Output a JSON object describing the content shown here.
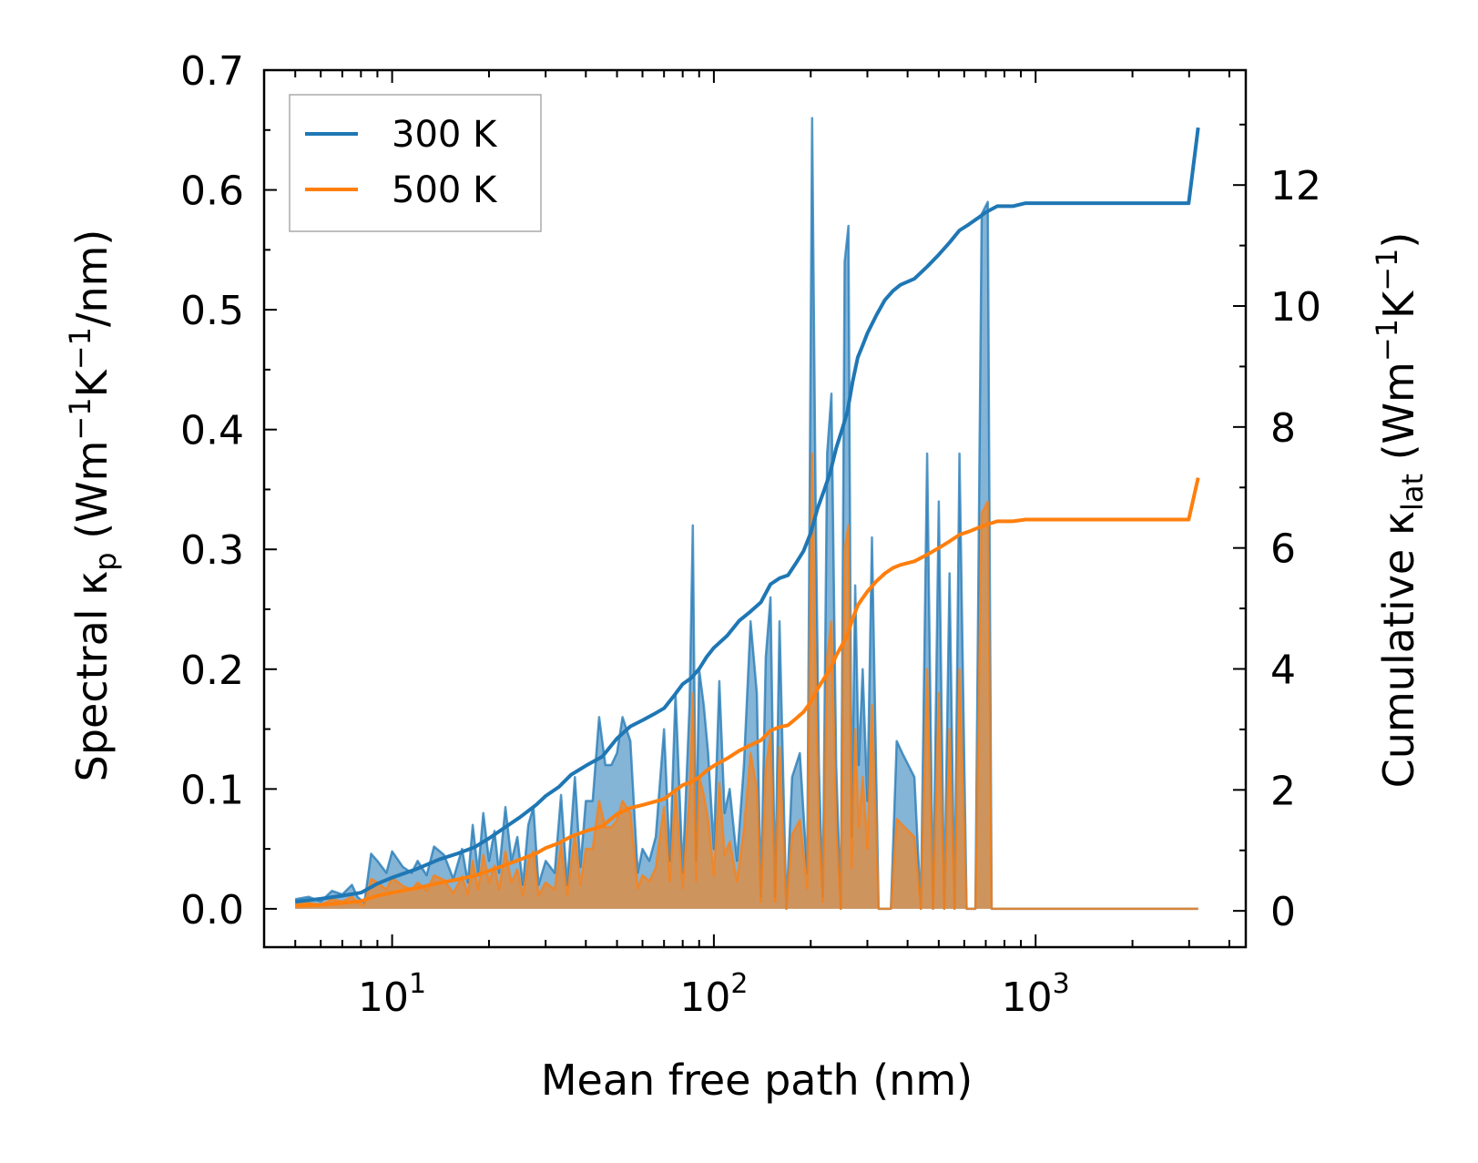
{
  "chart_data": {
    "type": "area",
    "title": "",
    "xlabel": "Mean free path (nm)",
    "ylabel": "Spectral κp (Wm−1K−1/nm)",
    "ylabel_parts": {
      "pre": "Spectral κ",
      "sub": "p",
      "mid1": " (Wm",
      "sup1": "−1",
      "mid2": "K",
      "sup2": "−1",
      "post": "/nm)"
    },
    "y2label": "Cumulative κlat (Wm−1K−1)",
    "y2label_parts": {
      "pre": "Cumulative κ",
      "sub": "lat",
      "mid1": " (Wm",
      "sup1": "−1",
      "mid2": "K",
      "sup2": "−1",
      "post": ")"
    },
    "xscale": "log",
    "xlim": [
      4.0,
      4500
    ],
    "ylim": [
      -0.032,
      0.7
    ],
    "y2lim": [
      -0.6,
      13.9
    ],
    "x_ticks": [
      {
        "value": 10,
        "base": "10",
        "exp": "1"
      },
      {
        "value": 100,
        "base": "10",
        "exp": "2"
      },
      {
        "value": 1000,
        "base": "10",
        "exp": "3"
      }
    ],
    "y_ticks": [
      "0.0",
      "0.1",
      "0.2",
      "0.3",
      "0.4",
      "0.5",
      "0.6",
      "0.7"
    ],
    "y2_ticks": [
      "0",
      "2",
      "4",
      "6",
      "8",
      "10",
      "12"
    ],
    "legend": {
      "position": "top-left",
      "entries": [
        "300 K",
        "500 K"
      ]
    },
    "colors": {
      "300 K": "#1f77b4",
      "500 K": "#ff7f0e"
    },
    "series": [
      {
        "name": "300 K spectral",
        "kind": "fill",
        "color": "#1f77b4",
        "x": [
          5.0,
          5.5,
          6.0,
          6.5,
          7.0,
          7.5,
          7.8,
          8.2,
          8.6,
          9.0,
          9.6,
          10.0,
          10.8,
          11.5,
          12.0,
          12.8,
          13.5,
          14.5,
          15.5,
          16.5,
          17.2,
          17.8,
          18.5,
          19.2,
          20.0,
          20.8,
          21.5,
          22.5,
          23.5,
          24.5,
          25.5,
          26.5,
          27.5,
          28.5,
          30.0,
          32.0,
          33.5,
          35.0,
          37.0,
          38.5,
          40.0,
          42.0,
          44.0,
          46.0,
          48.0,
          50.0,
          52.0,
          55.0,
          58.0,
          60.0,
          63.0,
          66.0,
          70.0,
          73.0,
          76.0,
          80.0,
          84.0,
          86.0,
          88.0,
          90.0,
          93.0,
          96.0,
          100.0,
          104.0,
          108.0,
          112.0,
          118.0,
          124.0,
          130.0,
          136.0,
          140.0,
          145.0,
          150.0,
          155.0,
          160.0,
          168.0,
          175.0,
          185.0,
          195.0,
          202.0,
          207.0,
          212.0,
          218.0,
          225.0,
          232.0,
          240.0,
          248.0,
          255.0,
          262.0,
          268.0,
          275.0,
          282.0,
          290.0,
          300.0,
          310.0,
          325.0,
          340.0,
          355.0,
          370.0,
          385.0,
          420.0,
          440.0,
          460.0,
          480.0,
          500.0,
          520.0,
          540.0,
          560.0,
          580.0,
          610.0,
          630.0,
          650.0,
          680.0,
          710.0,
          730.0,
          760.0,
          800.0,
          900.0,
          930.0,
          960.0,
          1000.0,
          1200.0,
          2000.0,
          2990.0,
          3040.0,
          3090.0,
          3150.0,
          3200.0
        ],
        "y": [
          0.008,
          0.01,
          0.006,
          0.015,
          0.012,
          0.02,
          0.01,
          0.005,
          0.046,
          0.04,
          0.03,
          0.048,
          0.035,
          0.03,
          0.04,
          0.028,
          0.052,
          0.045,
          0.025,
          0.05,
          0.022,
          0.07,
          0.03,
          0.08,
          0.04,
          0.065,
          0.03,
          0.085,
          0.04,
          0.06,
          0.02,
          0.07,
          0.085,
          0.02,
          0.04,
          0.03,
          0.095,
          0.02,
          0.11,
          0.035,
          0.09,
          0.09,
          0.16,
          0.12,
          0.12,
          0.13,
          0.16,
          0.14,
          0.03,
          0.05,
          0.04,
          0.06,
          0.15,
          0.04,
          0.18,
          0.03,
          0.17,
          0.32,
          0.04,
          0.2,
          0.17,
          0.13,
          0.05,
          0.19,
          0.08,
          0.1,
          0.04,
          0.12,
          0.24,
          0.18,
          0.01,
          0.21,
          0.26,
          0.01,
          0.24,
          0.0,
          0.11,
          0.13,
          0.03,
          0.66,
          0.35,
          0.12,
          0.01,
          0.38,
          0.43,
          0.12,
          0.0,
          0.54,
          0.57,
          0.06,
          0.27,
          0.12,
          0.2,
          0.09,
          0.31,
          0.0,
          0.0,
          0.0,
          0.14,
          0.13,
          0.11,
          0.0,
          0.38,
          0.0,
          0.34,
          0.0,
          0.28,
          0.0,
          0.38,
          0.0,
          0.0,
          0.0,
          0.58,
          0.59,
          0.0,
          0.0,
          0.0,
          0.0,
          0.0,
          0.0,
          0.0,
          0.0,
          0.0,
          0.0,
          0.0,
          0.0,
          0.0,
          0.0
        ]
      },
      {
        "name": "500 K spectral",
        "kind": "fill",
        "color": "#ff7f0e",
        "x": [
          5.0,
          5.5,
          6.0,
          6.5,
          7.0,
          7.5,
          7.8,
          8.2,
          8.6,
          9.0,
          9.6,
          10.0,
          10.8,
          11.5,
          12.0,
          12.8,
          13.5,
          14.5,
          15.5,
          16.5,
          17.2,
          17.8,
          18.5,
          19.2,
          20.0,
          20.8,
          21.5,
          22.5,
          23.5,
          24.5,
          25.5,
          26.5,
          27.5,
          28.5,
          30.0,
          32.0,
          33.5,
          35.0,
          37.0,
          38.5,
          40.0,
          42.0,
          44.0,
          46.0,
          48.0,
          50.0,
          52.0,
          55.0,
          58.0,
          60.0,
          63.0,
          66.0,
          70.0,
          73.0,
          76.0,
          80.0,
          84.0,
          86.0,
          88.0,
          90.0,
          93.0,
          96.0,
          100.0,
          104.0,
          108.0,
          112.0,
          118.0,
          124.0,
          130.0,
          136.0,
          140.0,
          145.0,
          150.0,
          155.0,
          160.0,
          168.0,
          175.0,
          185.0,
          195.0,
          202.0,
          207.0,
          212.0,
          218.0,
          225.0,
          232.0,
          240.0,
          248.0,
          255.0,
          262.0,
          268.0,
          275.0,
          282.0,
          290.0,
          300.0,
          310.0,
          325.0,
          340.0,
          355.0,
          370.0,
          385.0,
          420.0,
          440.0,
          460.0,
          480.0,
          500.0,
          520.0,
          540.0,
          560.0,
          580.0,
          610.0,
          630.0,
          650.0,
          680.0,
          710.0,
          730.0,
          760.0,
          800.0,
          900.0,
          930.0,
          960.0,
          1000.0,
          1200.0,
          2000.0,
          2990.0,
          3040.0,
          3090.0,
          3150.0,
          3200.0
        ],
        "y": [
          0.004,
          0.005,
          0.003,
          0.008,
          0.006,
          0.01,
          0.005,
          0.003,
          0.025,
          0.022,
          0.016,
          0.026,
          0.019,
          0.016,
          0.022,
          0.015,
          0.028,
          0.024,
          0.013,
          0.027,
          0.012,
          0.04,
          0.016,
          0.045,
          0.022,
          0.036,
          0.016,
          0.048,
          0.022,
          0.033,
          0.011,
          0.04,
          0.048,
          0.011,
          0.022,
          0.016,
          0.054,
          0.011,
          0.062,
          0.02,
          0.05,
          0.05,
          0.09,
          0.068,
          0.068,
          0.074,
          0.09,
          0.08,
          0.017,
          0.028,
          0.023,
          0.034,
          0.085,
          0.023,
          0.1,
          0.017,
          0.095,
          0.18,
          0.023,
          0.11,
          0.095,
          0.074,
          0.028,
          0.105,
          0.045,
          0.056,
          0.023,
          0.066,
          0.13,
          0.1,
          0.006,
          0.118,
          0.145,
          0.006,
          0.135,
          0.0,
          0.062,
          0.074,
          0.017,
          0.38,
          0.2,
          0.068,
          0.006,
          0.21,
          0.24,
          0.068,
          0.0,
          0.3,
          0.32,
          0.034,
          0.15,
          0.068,
          0.11,
          0.05,
          0.17,
          0.0,
          0.0,
          0.0,
          0.075,
          0.07,
          0.06,
          0.0,
          0.2,
          0.0,
          0.18,
          0.0,
          0.15,
          0.0,
          0.2,
          0.0,
          0.0,
          0.0,
          0.33,
          0.34,
          0.0,
          0.0,
          0.0,
          0.0,
          0.0,
          0.0,
          0.0,
          0.0,
          0.0,
          0.0,
          0.0,
          0.0,
          0.0,
          0.0
        ]
      },
      {
        "name": "300 K",
        "kind": "line",
        "axis": "right",
        "color": "#1f77b4",
        "x": [
          5,
          6,
          7,
          8,
          9,
          10,
          12,
          14,
          16,
          18,
          20,
          22,
          25,
          28,
          30,
          33,
          36,
          40,
          45,
          50,
          55,
          60,
          65,
          70,
          75,
          80,
          85,
          90,
          95,
          100,
          110,
          120,
          130,
          140,
          150,
          160,
          170,
          180,
          190,
          200,
          210,
          220,
          230,
          240,
          250,
          260,
          270,
          280,
          290,
          300,
          320,
          340,
          360,
          380,
          420,
          460,
          500,
          540,
          580,
          620,
          660,
          700,
          760,
          850,
          930,
          1000,
          1500,
          2000,
          2500,
          2990,
          3200
        ],
        "y": [
          0.15,
          0.2,
          0.25,
          0.3,
          0.45,
          0.55,
          0.7,
          0.85,
          0.95,
          1.05,
          1.2,
          1.35,
          1.55,
          1.75,
          1.9,
          2.05,
          2.25,
          2.4,
          2.55,
          2.85,
          3.05,
          3.15,
          3.25,
          3.35,
          3.55,
          3.75,
          3.85,
          4.0,
          4.2,
          4.35,
          4.55,
          4.8,
          4.95,
          5.1,
          5.4,
          5.5,
          5.55,
          5.75,
          5.95,
          6.25,
          6.65,
          6.95,
          7.25,
          7.65,
          7.95,
          8.25,
          8.75,
          9.15,
          9.35,
          9.55,
          9.85,
          10.1,
          10.25,
          10.35,
          10.45,
          10.65,
          10.85,
          11.05,
          11.25,
          11.35,
          11.45,
          11.55,
          11.65,
          11.65,
          11.7,
          11.7,
          11.7,
          11.7,
          11.7,
          11.7,
          12.95
        ]
      },
      {
        "name": "500 K",
        "kind": "line",
        "axis": "right",
        "color": "#ff7f0e",
        "x": [
          5,
          6,
          7,
          8,
          9,
          10,
          12,
          14,
          16,
          18,
          20,
          22,
          25,
          28,
          30,
          33,
          36,
          40,
          45,
          50,
          55,
          60,
          65,
          70,
          75,
          80,
          85,
          90,
          95,
          100,
          110,
          120,
          130,
          140,
          150,
          160,
          170,
          180,
          190,
          200,
          210,
          220,
          230,
          240,
          250,
          260,
          270,
          280,
          290,
          300,
          320,
          340,
          360,
          380,
          420,
          460,
          500,
          540,
          580,
          620,
          660,
          700,
          760,
          850,
          930,
          1000,
          1500,
          2000,
          2500,
          2990,
          3200
        ],
        "y": [
          0.08,
          0.1,
          0.13,
          0.16,
          0.25,
          0.3,
          0.38,
          0.46,
          0.52,
          0.58,
          0.66,
          0.74,
          0.85,
          0.95,
          1.04,
          1.12,
          1.23,
          1.32,
          1.4,
          1.6,
          1.7,
          1.75,
          1.8,
          1.85,
          1.97,
          2.08,
          2.13,
          2.21,
          2.32,
          2.4,
          2.52,
          2.65,
          2.74,
          2.82,
          2.98,
          3.04,
          3.07,
          3.18,
          3.29,
          3.45,
          3.67,
          3.84,
          4.0,
          4.22,
          4.39,
          4.56,
          4.83,
          5.05,
          5.17,
          5.28,
          5.45,
          5.58,
          5.67,
          5.72,
          5.78,
          5.89,
          6.0,
          6.11,
          6.22,
          6.27,
          6.33,
          6.38,
          6.44,
          6.44,
          6.47,
          6.47,
          6.47,
          6.47,
          6.47,
          6.47,
          7.16
        ]
      }
    ]
  }
}
